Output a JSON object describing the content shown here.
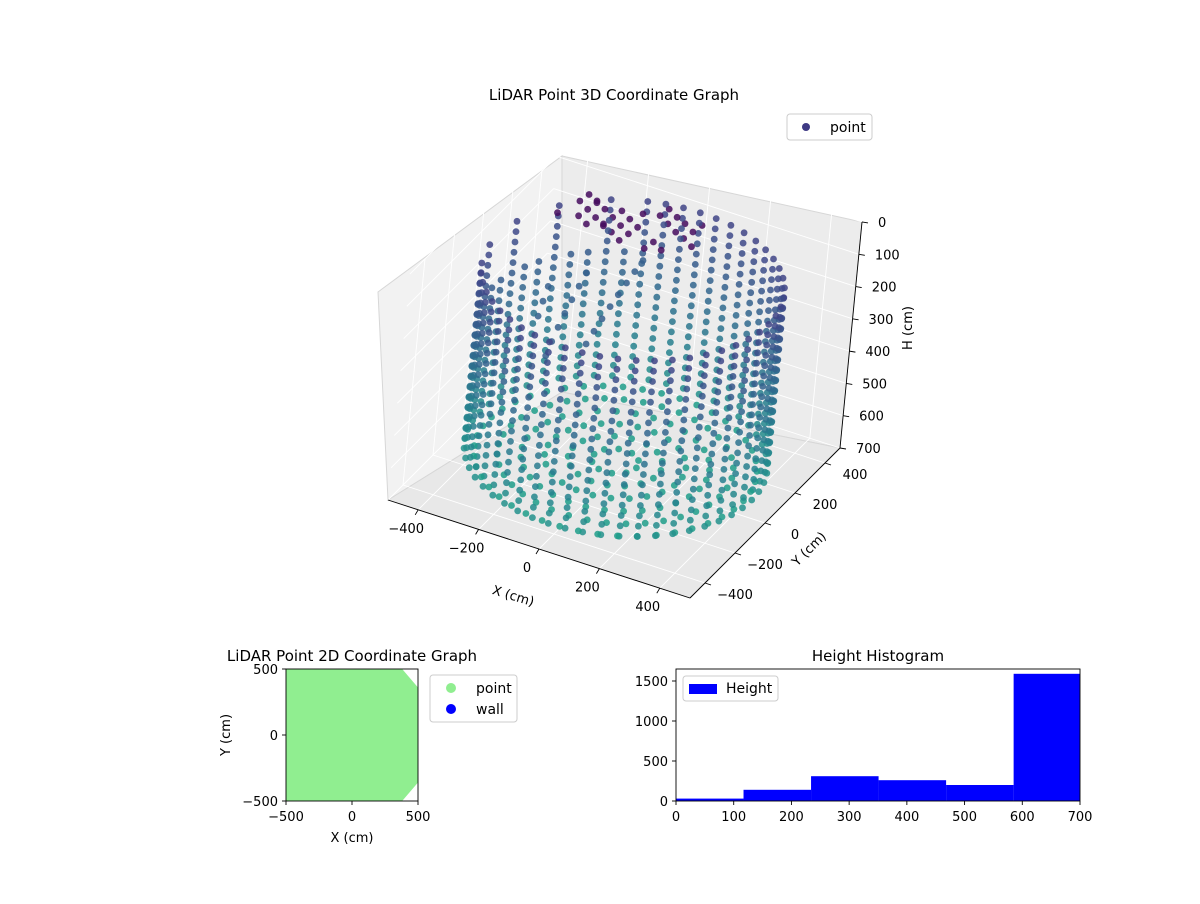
{
  "chart_data": [
    {
      "type": "scatter3d",
      "title": "LiDAR Point 3D Coordinate Graph",
      "xlabel": "X (cm)",
      "ylabel": "Y (cm)",
      "zlabel": "H (cm)",
      "xlim": [
        -500,
        500
      ],
      "ylim": [
        -500,
        500
      ],
      "zlim": [
        0,
        700
      ],
      "z_inverted": true,
      "xticks": [
        -400,
        -200,
        0,
        200,
        400
      ],
      "yticks": [
        -400,
        -200,
        0,
        200,
        400
      ],
      "zticks": [
        0,
        100,
        200,
        300,
        400,
        500,
        600,
        700
      ],
      "legend": [
        "point"
      ],
      "legend_position": "top-right",
      "colormap": "viridis",
      "grid": true,
      "wall_radius": 450,
      "floor_rings": [
        70,
        140,
        210,
        280,
        350,
        420
      ],
      "ceiling_cluster": {
        "h_range": [
          90,
          130
        ],
        "x_range": [
          -350,
          50
        ],
        "y_range": [
          200,
          420
        ]
      }
    },
    {
      "type": "scatter",
      "title": "LiDAR Point 2D Coordinate Graph",
      "xlabel": "X (cm)",
      "ylabel": "Y (cm)",
      "xlim": [
        -500,
        500
      ],
      "ylim": [
        -500,
        500
      ],
      "xticks": [
        -500,
        0,
        500
      ],
      "yticks": [
        -500,
        0,
        500
      ],
      "series": [
        {
          "name": "point",
          "color": "#90ee90"
        },
        {
          "name": "wall",
          "color": "#0000ff"
        }
      ],
      "legend_position": "outside right"
    },
    {
      "type": "bar",
      "title": "Height Histogram",
      "xlim": [
        0,
        700
      ],
      "ylim": [
        0,
        1650
      ],
      "xticks": [
        0,
        100,
        200,
        300,
        400,
        500,
        600,
        700
      ],
      "yticks": [
        0,
        500,
        1000,
        1500
      ],
      "bins": [
        0,
        117,
        234,
        351,
        468,
        585,
        700
      ],
      "counts": [
        30,
        140,
        310,
        260,
        200,
        1590
      ],
      "series": [
        {
          "name": "Height",
          "color": "#0000ff"
        }
      ],
      "legend_position": "top-left"
    }
  ]
}
